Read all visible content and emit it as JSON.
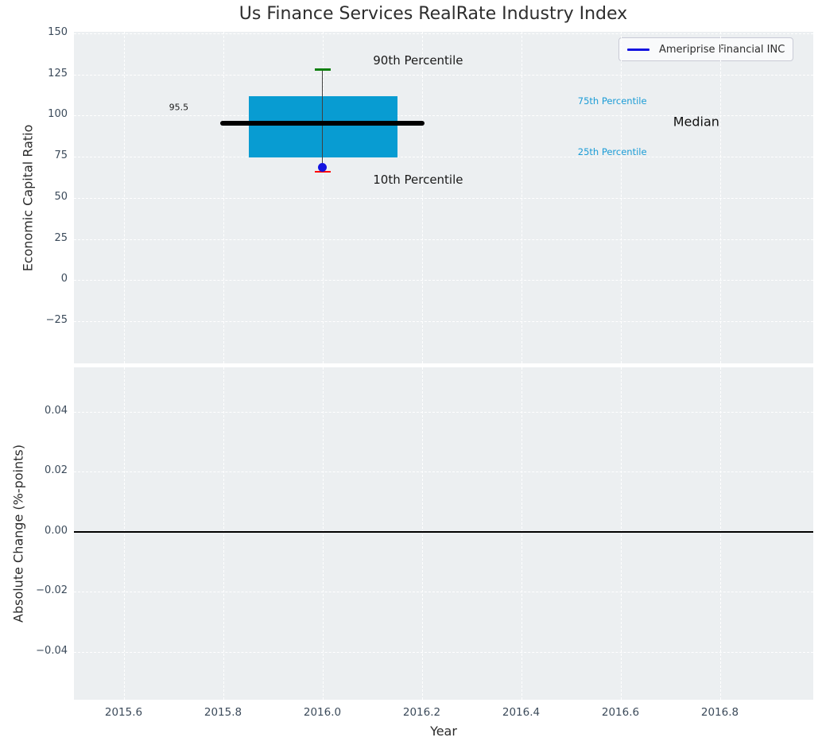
{
  "figure": {
    "title": "Us Finance Services RealRate Industry Index"
  },
  "chart_data": [
    {
      "type": "boxplot",
      "title": "Us Finance Services RealRate Industry Index",
      "xlabel": "",
      "ylabel": "Economic Capital Ratio",
      "xlim": [
        2015.5,
        2016.988
      ],
      "ylim": [
        -50.6,
        151.0
      ],
      "grid": true,
      "ytick_values": [
        150,
        125,
        100,
        75,
        50,
        25,
        0,
        -25
      ],
      "ytick_labels": [
        "150",
        "125",
        "100",
        "75",
        "50",
        "25",
        "0",
        "−25"
      ],
      "legend": {
        "position": "upper right",
        "entries": [
          {
            "label": "Ameriprise Financial INC",
            "color": "#1414e0"
          }
        ]
      },
      "box": {
        "x": 2016.0,
        "p10": 66,
        "p25": 74.5,
        "median": 95.5,
        "p75": 112,
        "p90": 128,
        "box_left": 2015.852,
        "box_right": 2016.151,
        "median_left": 2015.795,
        "median_right": 2016.206,
        "box_color": "#089cd2",
        "median_color": "#000000",
        "whisker_color": "#404040",
        "p90_cap_color": "#108010",
        "p10_cap_color": "#ff0000"
      },
      "point": {
        "x": 2016.0,
        "y": 68.5,
        "color": "#1414e0",
        "series": "Ameriprise Financial INC"
      },
      "annotations": [
        {
          "text": "95.5",
          "x": 2015.711,
          "y": 105,
          "color": "#1a1a1a",
          "size": 11,
          "anchor": "middle"
        },
        {
          "text": "90th Percentile",
          "x": 2016.102,
          "y": 133.5,
          "color": "#1a1a1a",
          "size": 15,
          "anchor": "start"
        },
        {
          "text": "10th Percentile",
          "x": 2016.102,
          "y": 61,
          "color": "#1a1a1a",
          "size": 15,
          "anchor": "start"
        },
        {
          "text": "75th Percentile",
          "x": 2016.514,
          "y": 109,
          "color": "#1b9cd6",
          "size": 11.5,
          "anchor": "start"
        },
        {
          "text": "25th Percentile",
          "x": 2016.514,
          "y": 78,
          "color": "#1b9cd6",
          "size": 11.5,
          "anchor": "start"
        },
        {
          "text": "Median",
          "x": 2016.706,
          "y": 96.5,
          "color": "#111111",
          "size": 16,
          "anchor": "start"
        }
      ]
    },
    {
      "type": "line",
      "xlabel": "Year",
      "ylabel": "Absolute Change (%-points)",
      "xlim": [
        2015.5,
        2016.988
      ],
      "ylim": [
        -0.0559,
        0.0548
      ],
      "grid": true,
      "ytick_values": [
        0.04,
        0.02,
        0,
        -0.02,
        -0.04
      ],
      "ytick_labels": [
        "0.04",
        "0.02",
        "0.00",
        "−0.02",
        "−0.04"
      ],
      "xtick_values": [
        2015.6,
        2015.8,
        2016.0,
        2016.2,
        2016.4,
        2016.6,
        2016.8
      ],
      "xtick_labels": [
        "2015.6",
        "2015.8",
        "2016.0",
        "2016.2",
        "2016.4",
        "2016.6",
        "2016.8"
      ],
      "zero_line": {
        "y": 0,
        "color": "#000000"
      }
    }
  ],
  "colors": {
    "plot_background": "#eceff1",
    "gridline": "#ffffff",
    "tick_label": "#3b4a5a",
    "axis_label": "#2b2b2b",
    "title": "#2e2e2e"
  }
}
